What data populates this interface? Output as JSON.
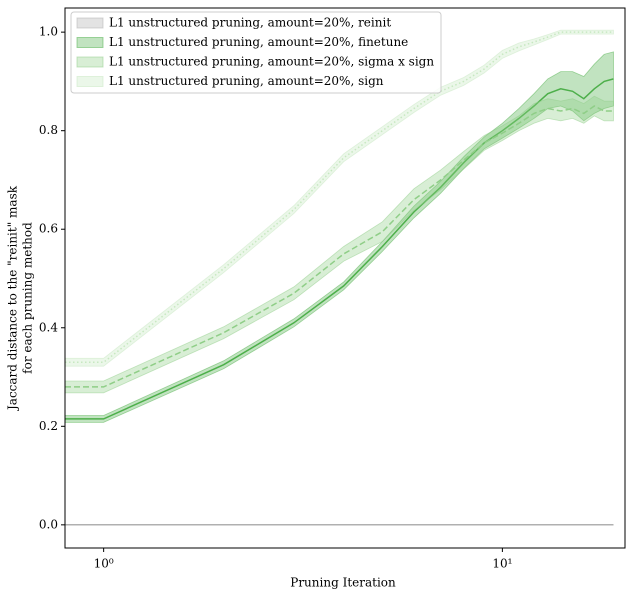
{
  "chart_data": {
    "type": "line",
    "xlabel": "Pruning Iteration",
    "ylabel": [
      "Jaccard distance to the \"reinit\" mask",
      "for each pruning method"
    ],
    "xscale": "log",
    "xlim": [
      0.8,
      20.3
    ],
    "ylim": [
      -0.047,
      1.049
    ],
    "xticks": [
      {
        "value": 1,
        "label": "10⁰"
      },
      {
        "value": 10,
        "label": "10¹"
      }
    ],
    "yticks": [
      {
        "value": 0,
        "label": "0.0"
      },
      0.2,
      0.4,
      0.6,
      0.8,
      {
        "value": 1,
        "label": "1.0"
      }
    ],
    "legend": "upper left",
    "x": [
      0.8,
      1,
      2,
      3,
      4,
      5,
      6,
      7,
      8,
      9,
      10,
      11,
      12,
      13,
      14,
      15,
      16,
      17,
      18,
      19
    ],
    "series": [
      {
        "name": "L1 unstructured pruning, amount=20%, reinit",
        "color": "#b0b0b0",
        "linestyle": "solid",
        "values": [
          0,
          0,
          0,
          0,
          0,
          0,
          0,
          0,
          0,
          0,
          0,
          0,
          0,
          0,
          0,
          0,
          0,
          0,
          0,
          0
        ],
        "error": [
          0,
          0,
          0,
          0,
          0,
          0,
          0,
          0,
          0,
          0,
          0,
          0,
          0,
          0,
          0,
          0,
          0,
          0,
          0,
          0
        ]
      },
      {
        "name": "L1 unstructured pruning, amount=20%, finetune",
        "color": "#4daf4a",
        "linestyle": "solid",
        "values": [
          0.215,
          0.215,
          0.325,
          0.41,
          0.485,
          0.565,
          0.635,
          0.685,
          0.735,
          0.775,
          0.8,
          0.825,
          0.85,
          0.875,
          0.885,
          0.88,
          0.865,
          0.885,
          0.9,
          0.905
        ],
        "error": [
          0.007,
          0.007,
          0.008,
          0.008,
          0.008,
          0.01,
          0.012,
          0.012,
          0.012,
          0.012,
          0.015,
          0.02,
          0.025,
          0.03,
          0.035,
          0.04,
          0.045,
          0.05,
          0.055,
          0.055
        ]
      },
      {
        "name": "L1 unstructured pruning, amount=20%, sigma x sign",
        "color": "#8fce87",
        "linestyle": "dashed",
        "values": [
          0.28,
          0.28,
          0.39,
          0.47,
          0.55,
          0.595,
          0.66,
          0.7,
          0.74,
          0.775,
          0.795,
          0.815,
          0.835,
          0.845,
          0.84,
          0.845,
          0.835,
          0.85,
          0.84,
          0.84
        ],
        "error": [
          0.012,
          0.012,
          0.012,
          0.013,
          0.015,
          0.02,
          0.022,
          0.02,
          0.018,
          0.015,
          0.015,
          0.015,
          0.02,
          0.02,
          0.02,
          0.02,
          0.02,
          0.02,
          0.02,
          0.02
        ]
      },
      {
        "name": "L1 unstructured pruning, amount=20%, sign",
        "color": "#c7e8c1",
        "linestyle": "dotted",
        "values": [
          0.33,
          0.33,
          0.52,
          0.64,
          0.745,
          0.8,
          0.845,
          0.88,
          0.9,
          0.925,
          0.955,
          0.97,
          0.98,
          0.99,
          1.0,
          1.0,
          1.0,
          1.0,
          1.0,
          1.0
        ],
        "error": [
          0.008,
          0.008,
          0.008,
          0.008,
          0.008,
          0.008,
          0.008,
          0.008,
          0.008,
          0.008,
          0.008,
          0.008,
          0.006,
          0.005,
          0.004,
          0.004,
          0.004,
          0.004,
          0.004,
          0.004
        ]
      }
    ]
  }
}
